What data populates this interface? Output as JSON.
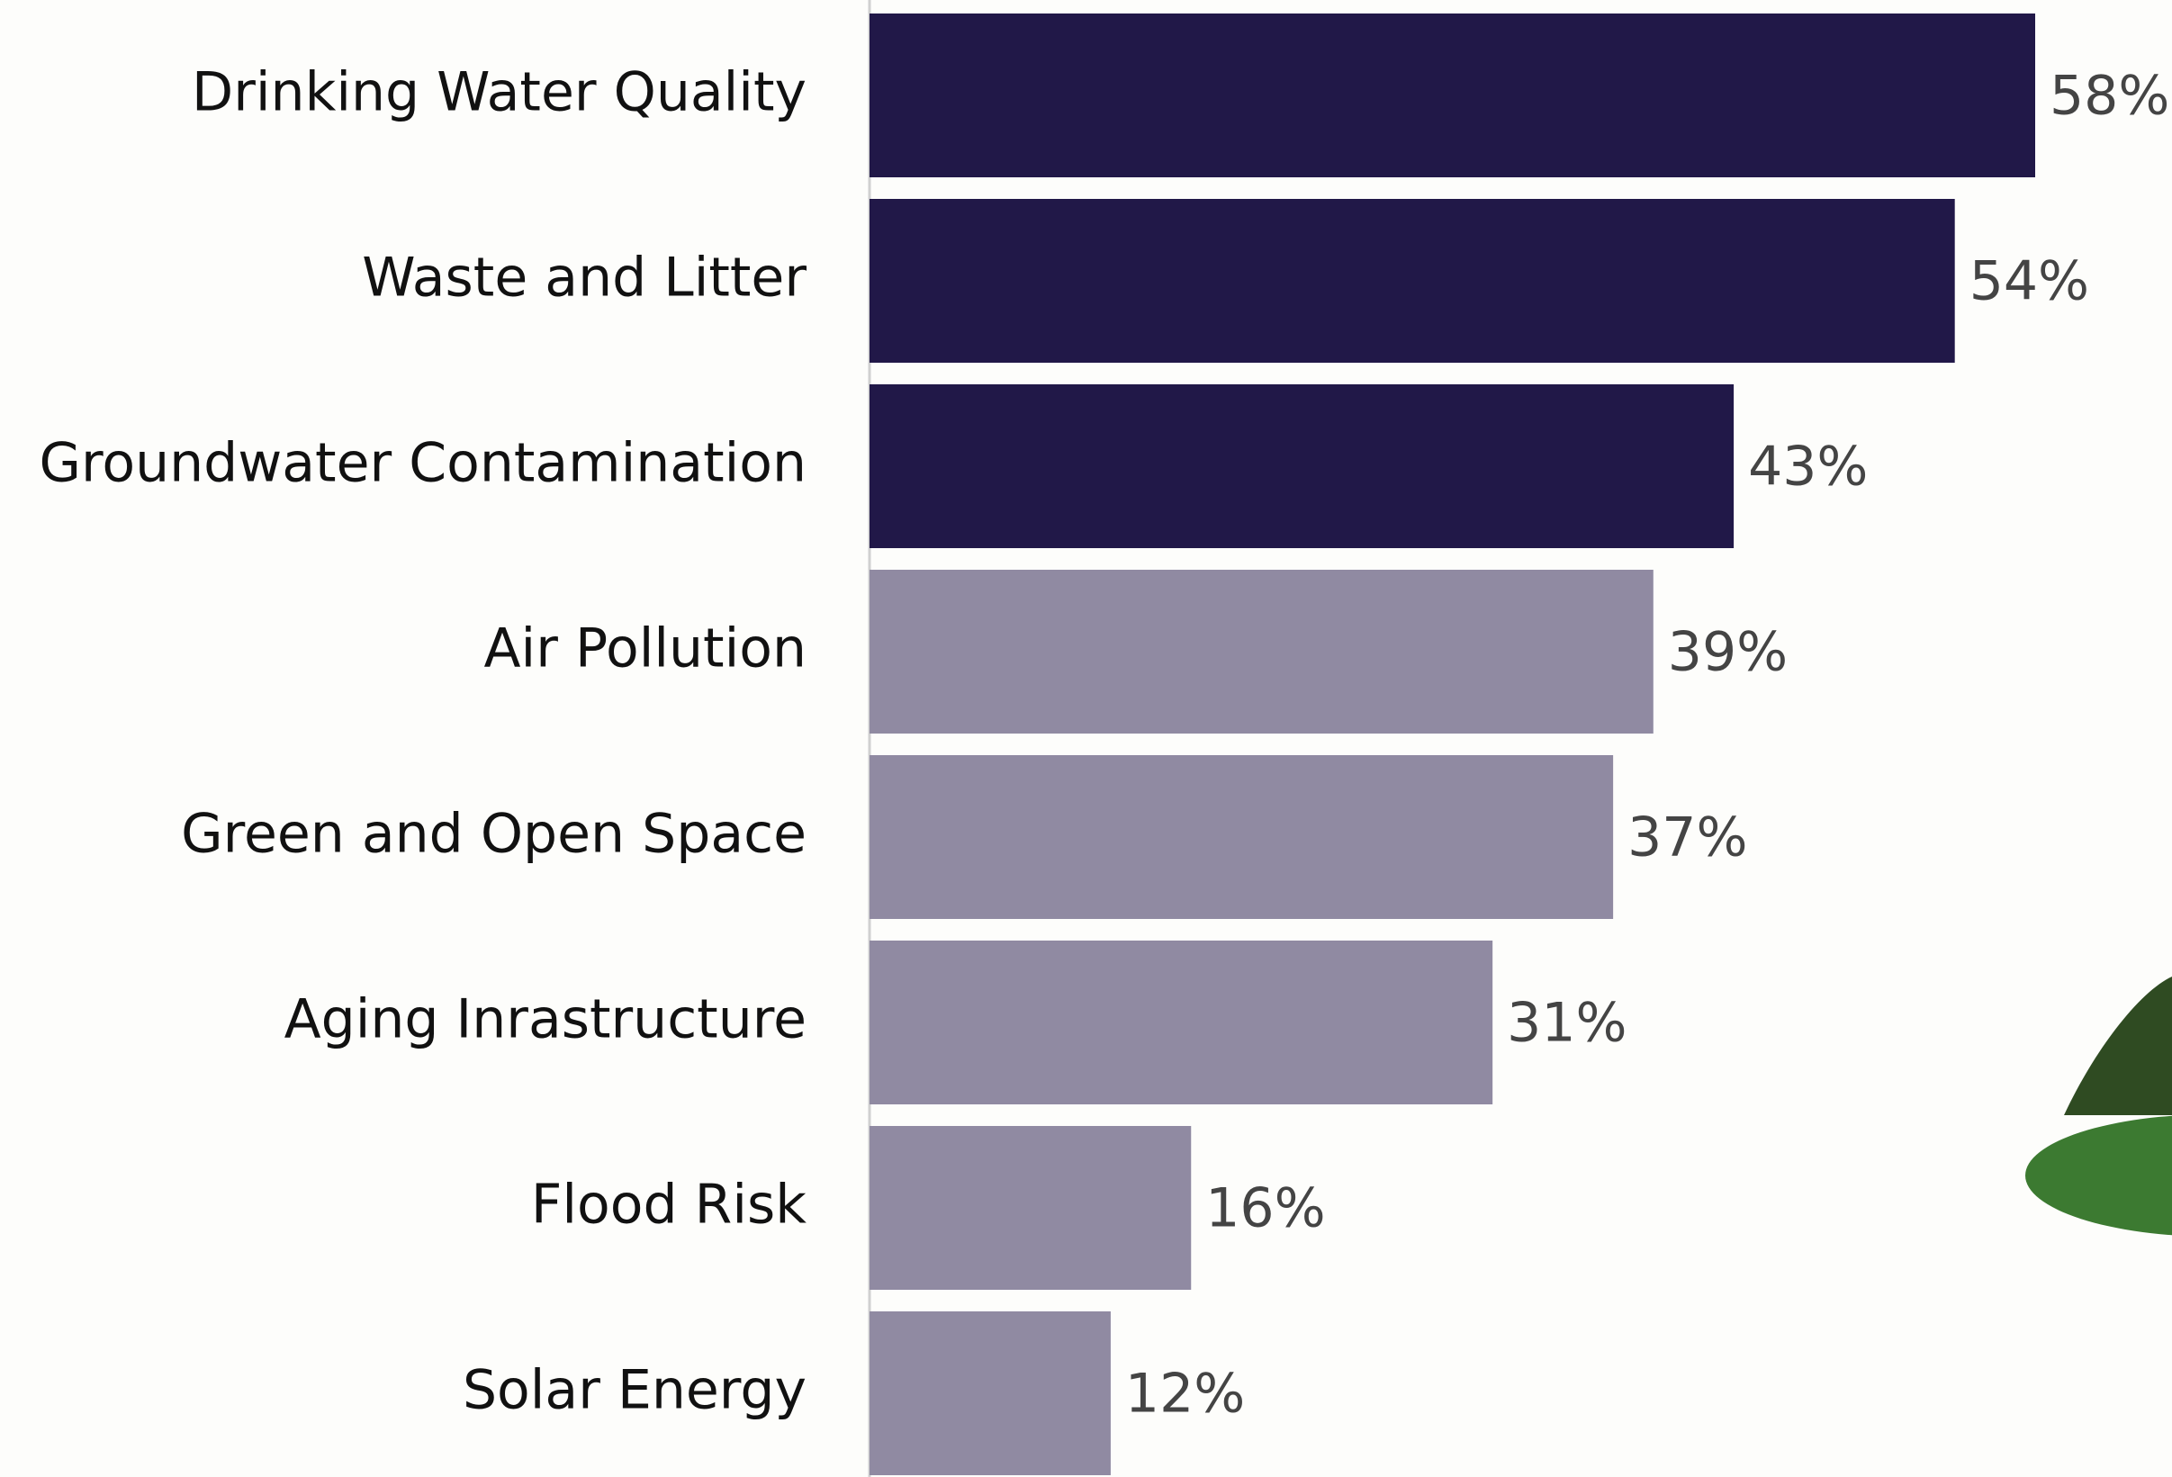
{
  "chart_data": {
    "type": "bar",
    "orientation": "horizontal",
    "categories": [
      "Drinking Water Quality",
      "Waste and Litter",
      "Groundwater Contamination",
      "Air Pollution",
      "Green and Open Space",
      "Aging Inrastructure",
      "Flood Risk",
      "Solar Energy"
    ],
    "values": [
      58,
      54,
      43,
      39,
      37,
      31,
      16,
      12
    ],
    "value_labels": [
      "58%",
      "54%",
      "43%",
      "39%",
      "37%",
      "31%",
      "16%",
      "12%"
    ],
    "colors": [
      "#211848",
      "#211848",
      "#211848",
      "#908aa2",
      "#908aa2",
      "#908aa2",
      "#908aa2",
      "#908aa2"
    ]
  }
}
